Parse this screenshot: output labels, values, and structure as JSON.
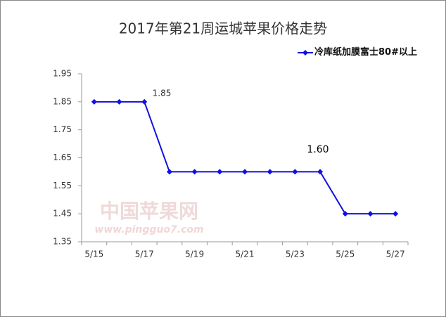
{
  "chart_data": {
    "type": "line",
    "title": "2017年第21周运城苹果价格走势",
    "categories": [
      "5/15",
      null,
      "5/17",
      null,
      "5/19",
      null,
      "5/21",
      null,
      "5/23",
      null,
      "5/25",
      null,
      "5/27"
    ],
    "series": [
      {
        "name": "冷库纸加膜富士80#以上",
        "color": "#1010e0",
        "values": [
          1.85,
          1.85,
          1.85,
          1.6,
          1.6,
          1.6,
          1.6,
          1.6,
          1.6,
          1.6,
          1.45,
          1.45,
          1.45
        ]
      }
    ],
    "ylim": [
      1.35,
      1.95
    ],
    "yticks": [
      1.35,
      1.45,
      1.55,
      1.65,
      1.75,
      1.85,
      1.95
    ],
    "grid": false,
    "legend": "top-right",
    "annotations": [
      "1.85",
      "1.60"
    ],
    "watermark": [
      "中国苹果网",
      "www.pingguo7.com"
    ]
  }
}
